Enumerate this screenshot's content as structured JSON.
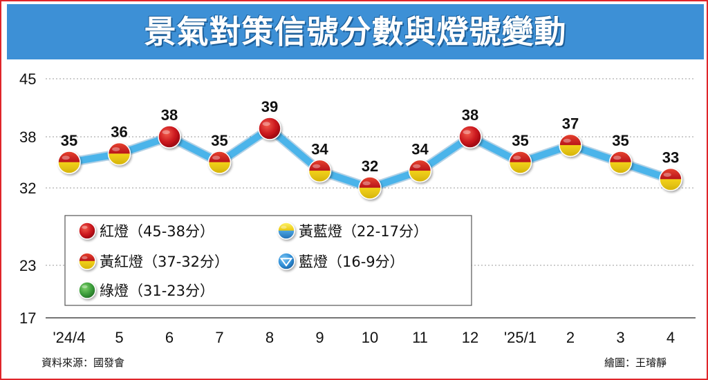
{
  "title": "景氣對策信號分數與燈號變動",
  "chart_data": {
    "type": "line",
    "categories": [
      "'24/4",
      "5",
      "6",
      "7",
      "8",
      "9",
      "10",
      "11",
      "12",
      "'25/1",
      "2",
      "3",
      "4"
    ],
    "values": [
      35,
      36,
      38,
      35,
      39,
      34,
      32,
      34,
      38,
      35,
      37,
      35,
      33
    ],
    "lights": [
      "yellow-red",
      "yellow-red",
      "red",
      "yellow-red",
      "red",
      "yellow-red",
      "yellow-red",
      "yellow-red",
      "red",
      "yellow-red",
      "yellow-red",
      "yellow-red",
      "yellow-red"
    ],
    "yticks": [
      "45",
      "38",
      "32",
      "23",
      "17"
    ],
    "ylim": [
      17,
      45
    ],
    "grid": true,
    "line_color": "#4bb4ea",
    "legend_placement": "bottom-left",
    "legend": [
      {
        "name": "紅燈（45-38分）",
        "light": "red"
      },
      {
        "name": "黃藍燈（22-17分）",
        "light": "yellow-blue"
      },
      {
        "name": "黃紅燈（37-32分）",
        "light": "yellow-red"
      },
      {
        "name": "藍燈（16-9分）",
        "light": "blue"
      },
      {
        "name": "綠燈（31-23分）",
        "light": "green"
      }
    ]
  },
  "colors": {
    "red": "#c8141c",
    "yellow": "#f2d21a",
    "blue": "#2f8fd8",
    "green": "#3a9b3a",
    "frame": "#e0252a",
    "title_bg": "#3d90d6"
  },
  "footer": {
    "source": "資料來源：國發會",
    "credit": "繪圖：王璿靜"
  }
}
